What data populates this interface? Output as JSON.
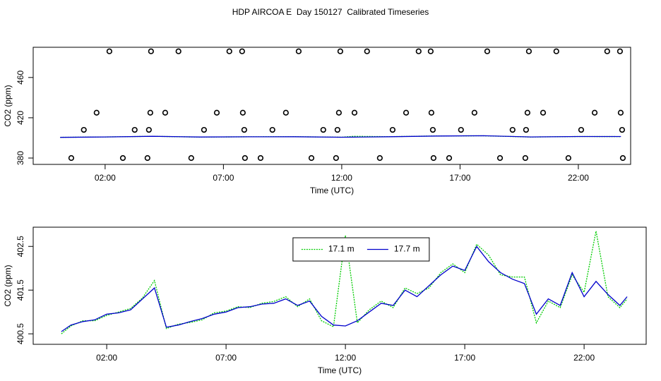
{
  "title": "HDP AIRCOA E  Day 150127  Calibrated Timeseries",
  "chart_data": [
    {
      "type": "line",
      "x_label": "Time (UTC)",
      "y_label": "CO2 (ppm)",
      "xlim": [
        -1.04,
        24.21
      ],
      "ylim": [
        373.7,
        490
      ],
      "xticks": [
        {
          "value": 2,
          "label": "02:00"
        },
        {
          "value": 7,
          "label": "07:00"
        },
        {
          "value": 12,
          "label": "12:00"
        },
        {
          "value": 17,
          "label": "17:00"
        },
        {
          "value": 22,
          "label": "22:00"
        }
      ],
      "yticks": [
        380,
        420,
        460
      ],
      "x": [
        0.1,
        2,
        4,
        6,
        8,
        10,
        12,
        12.5,
        14,
        16,
        18,
        20,
        22,
        23.8
      ],
      "series": [
        {
          "color": "#00cc00",
          "line_style": "dotted",
          "values": [
            400.6,
            400.95,
            401.6,
            400.8,
            401.1,
            401.2,
            400.7,
            401.6,
            401.2,
            401.9,
            402.1,
            400.9,
            401.4,
            401.3
          ]
        },
        {
          "color": "#0000cc",
          "line_style": "solid",
          "values": [
            400.55,
            400.95,
            401.55,
            400.85,
            401.12,
            401.15,
            400.68,
            400.8,
            401.15,
            401.85,
            402.15,
            400.95,
            401.35,
            401.35
          ]
        }
      ],
      "markers": {
        "x": [
          2.18,
          3.94,
          5.1,
          7.25,
          7.79,
          10.18,
          11.94,
          13.07,
          15.25,
          15.76,
          18.15,
          19.91,
          21.07,
          23.22,
          23.76,
          1.64,
          3.91,
          4.54,
          6.72,
          7.82,
          9.64,
          11.88,
          12.54,
          14.72,
          15.79,
          17.61,
          19.85,
          20.51,
          22.69,
          23.79,
          1.1,
          3.25,
          3.85,
          6.18,
          7.88,
          9.07,
          11.22,
          11.82,
          14.15,
          15.85,
          17.04,
          19.22,
          19.79,
          22.12,
          23.85,
          0.57,
          2.75,
          3.79,
          5.64,
          7.91,
          8.57,
          10.72,
          11.76,
          13.61,
          15.88,
          16.54,
          18.69,
          19.76,
          21.58,
          23.88
        ],
        "values": [
          486,
          486,
          486,
          486,
          486,
          486,
          486,
          486,
          486,
          486,
          486,
          486,
          486,
          486,
          486,
          425,
          425,
          425,
          425,
          425,
          425,
          425,
          425,
          425,
          425,
          425,
          425,
          425,
          425,
          425,
          408,
          408,
          408,
          408,
          408,
          408,
          408,
          408,
          408,
          408,
          408,
          408,
          408,
          408,
          408,
          380,
          380,
          380,
          380,
          380,
          380,
          380,
          380,
          380,
          380,
          380,
          380,
          380,
          380,
          380
        ]
      }
    },
    {
      "type": "line",
      "x_label": "Time (UTC)",
      "y_label": "CO2 (ppm)",
      "xlim": [
        -1.08,
        24.6
      ],
      "ylim": [
        400.26,
        402.94
      ],
      "xticks": [
        {
          "value": 2,
          "label": "02:00"
        },
        {
          "value": 7,
          "label": "07:00"
        },
        {
          "value": 12,
          "label": "12:00"
        },
        {
          "value": 17,
          "label": "17:00"
        },
        {
          "value": 22,
          "label": "22:00"
        }
      ],
      "yticks": [
        400.5,
        401.5,
        402.5
      ],
      "legend": "top",
      "x": [
        0.1,
        0.5,
        1,
        1.5,
        2,
        2.5,
        3,
        3.5,
        4,
        4.5,
        5,
        5.5,
        6,
        6.5,
        7,
        7.5,
        8,
        8.5,
        9,
        9.5,
        10,
        10.5,
        11,
        11.5,
        12,
        12.5,
        13,
        13.5,
        14,
        14.5,
        15,
        15.5,
        16,
        16.5,
        17,
        17.5,
        18,
        18.5,
        19,
        19.5,
        20,
        20.5,
        21,
        21.5,
        22,
        22.5,
        23,
        23.5,
        23.8
      ],
      "series": [
        {
          "name": "17.1 m",
          "color": "#00cc00",
          "line_style": "dotted",
          "values": [
            400.5,
            400.68,
            400.8,
            400.8,
            400.92,
            401.0,
            401.08,
            401.32,
            401.72,
            400.62,
            400.72,
            400.76,
            400.82,
            400.98,
            401.02,
            401.12,
            401.1,
            401.2,
            401.24,
            401.35,
            401.12,
            401.3,
            400.8,
            400.66,
            402.75,
            400.75,
            401.05,
            401.25,
            401.1,
            401.55,
            401.42,
            401.55,
            401.9,
            402.1,
            401.9,
            402.55,
            402.3,
            401.85,
            401.8,
            401.8,
            400.75,
            401.25,
            401.1,
            401.85,
            401.45,
            402.85,
            401.35,
            401.1,
            401.3
          ]
        },
        {
          "name": "17.7 m",
          "color": "#0000cc",
          "line_style": "solid",
          "values": [
            400.55,
            400.7,
            400.78,
            400.82,
            400.95,
            400.98,
            401.05,
            401.3,
            401.55,
            400.65,
            400.7,
            400.78,
            400.85,
            400.95,
            401.0,
            401.1,
            401.12,
            401.18,
            401.2,
            401.3,
            401.15,
            401.25,
            400.9,
            400.7,
            400.68,
            400.8,
            401.0,
            401.2,
            401.15,
            401.5,
            401.35,
            401.6,
            401.85,
            402.05,
            401.95,
            402.5,
            402.15,
            401.9,
            401.75,
            401.65,
            400.95,
            401.3,
            401.15,
            401.9,
            401.35,
            401.7,
            401.4,
            401.15,
            401.35
          ]
        }
      ]
    }
  ]
}
